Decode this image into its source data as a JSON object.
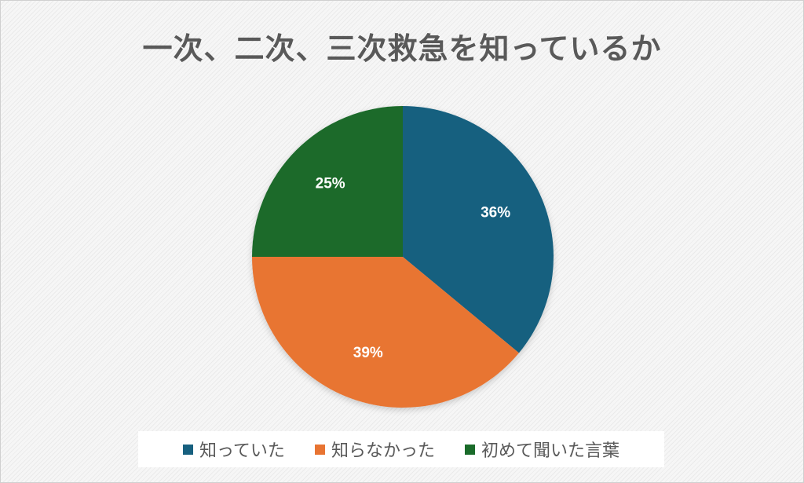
{
  "chart_data": {
    "type": "pie",
    "title": "一次、二次、三次救急を知っているか",
    "slices": [
      {
        "name": "知っていた",
        "value": 36,
        "label": "36%",
        "color": "#17607f"
      },
      {
        "name": "知らなかった",
        "value": 39,
        "label": "39%",
        "color": "#e87432"
      },
      {
        "name": "初めて聞いた言葉",
        "value": 25,
        "label": "25%",
        "color": "#1a6b2a"
      }
    ],
    "legend_position": "bottom",
    "start_angle": "top",
    "direction": "clockwise"
  }
}
